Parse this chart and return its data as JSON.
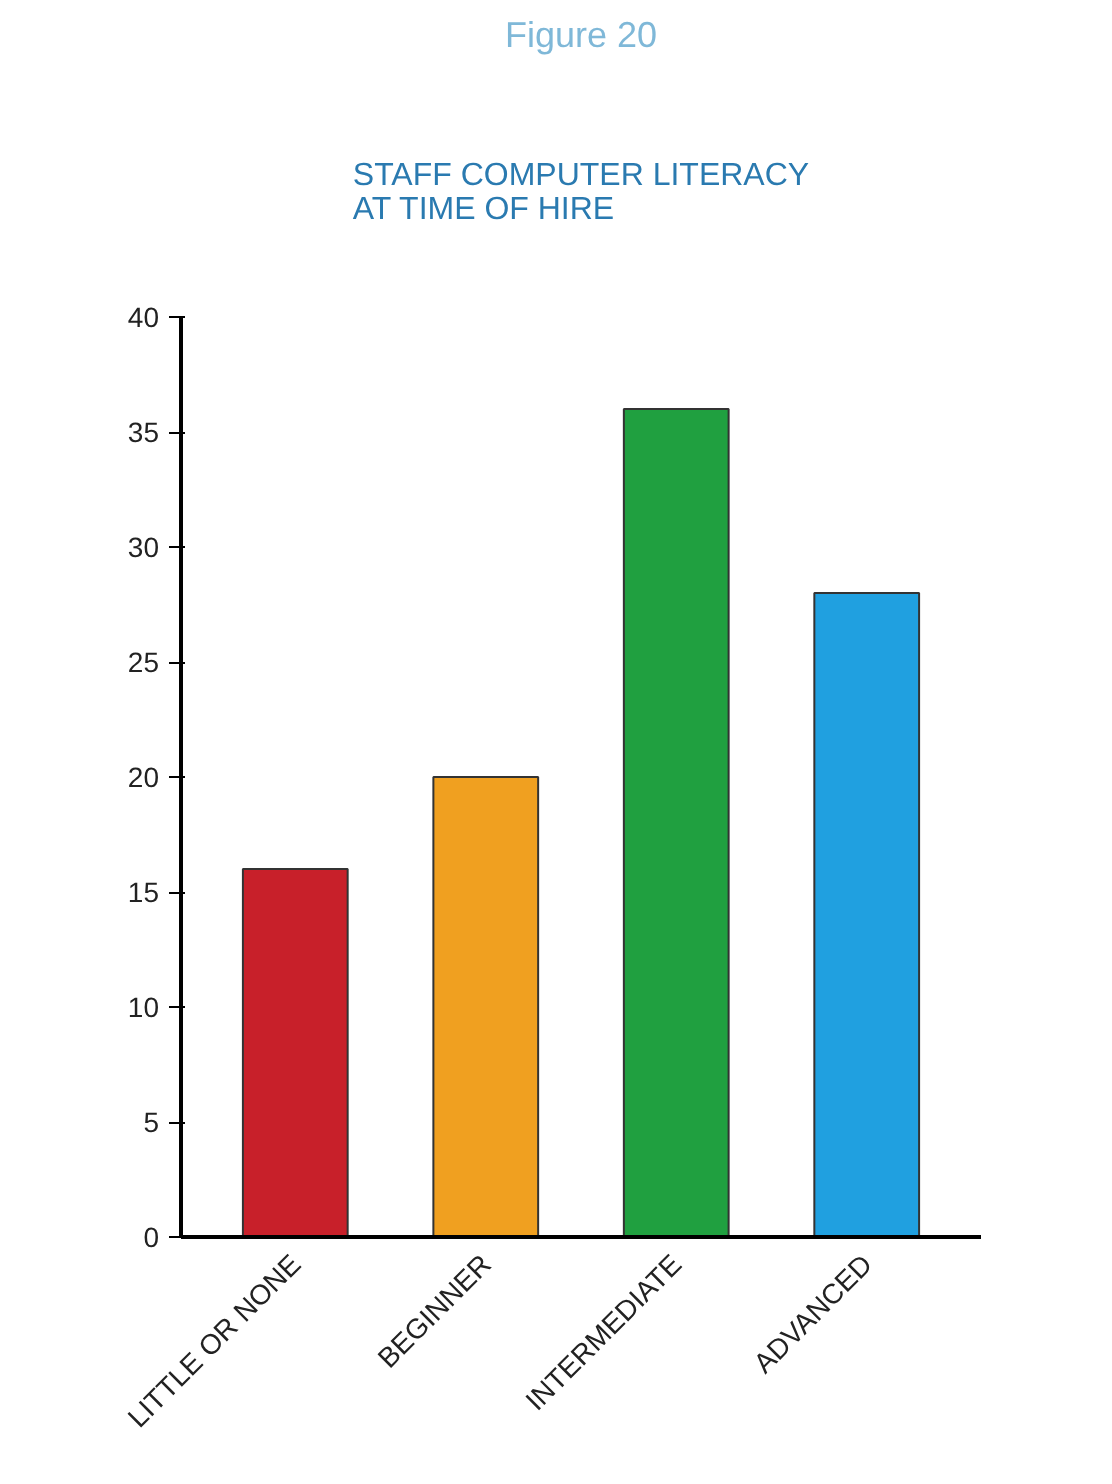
{
  "chart_data": {
    "type": "bar",
    "title": "Figure 20",
    "subtitle": "STAFF COMPUTER LITERACY\nAT TIME OF HIRE",
    "categories": [
      "LITTLE OR NONE",
      "BEGINNER",
      "INTERMEDIATE",
      "ADVANCED"
    ],
    "values": [
      16,
      20,
      36,
      28
    ],
    "colors": [
      "#c8202a",
      "#f0a020",
      "#20a040",
      "#20a0e0"
    ],
    "ylim": [
      0,
      40
    ],
    "yticks": [
      0,
      5,
      10,
      15,
      20,
      25,
      30,
      35,
      40
    ],
    "grid": false
  }
}
